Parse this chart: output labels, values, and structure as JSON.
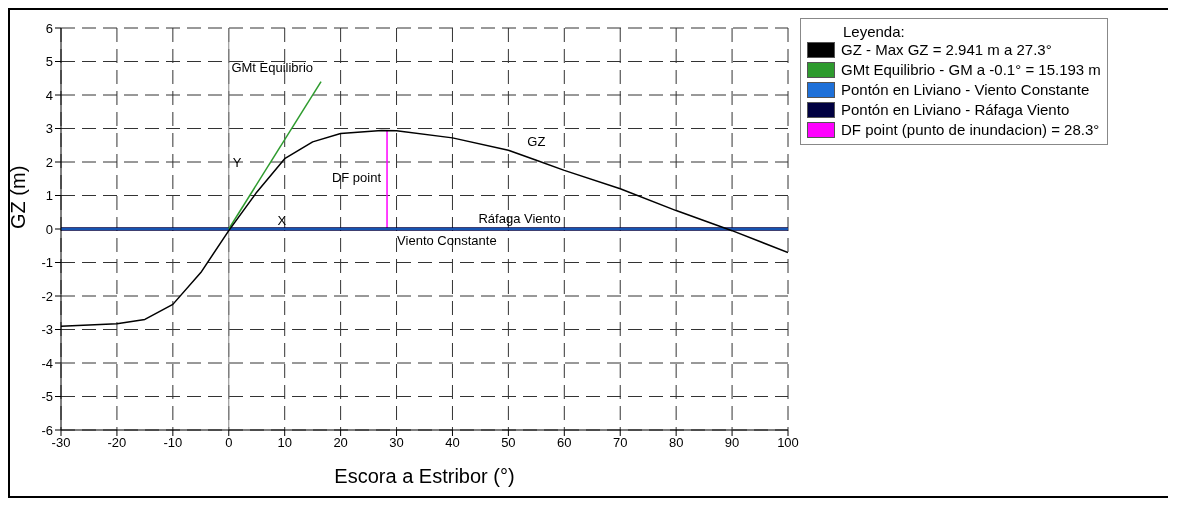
{
  "chart_data": {
    "type": "line",
    "xlabel": "Escora a Estribor (°)",
    "ylabel": "GZ (m)",
    "legend_title": "Leyenda:",
    "legend": "right",
    "grid": true,
    "line_style": "solid",
    "marker": "none",
    "xlim": [
      -30,
      100
    ],
    "xticks": [
      -30,
      -20,
      -10,
      0,
      10,
      20,
      30,
      40,
      50,
      60,
      70,
      80,
      90,
      100
    ],
    "ylim": [
      -6,
      6
    ],
    "yticks": [
      -6,
      -5,
      -4,
      -3,
      -2,
      -1,
      0,
      1,
      2,
      3,
      4,
      5,
      6
    ],
    "series": [
      {
        "name": "GZ - Max GZ = 2.941 m a 27.3°",
        "color": "#000000",
        "x": [
          -30,
          -20,
          -15,
          -10,
          -5,
          0,
          5,
          10,
          15,
          20,
          27.3,
          30,
          40,
          50,
          55,
          60,
          70,
          80,
          90,
          100
        ],
        "values": [
          -2.9,
          -2.83,
          -2.7,
          -2.25,
          -1.3,
          -0.05,
          1.1,
          2.1,
          2.6,
          2.85,
          2.94,
          2.93,
          2.72,
          2.35,
          2.05,
          1.75,
          1.2,
          0.55,
          -0.05,
          -0.7
        ]
      },
      {
        "name": "GMt Equilibrio - GM a -0.1° = 15.193 m",
        "color": "#2e9b2e",
        "x": [
          0,
          16.5
        ],
        "values": [
          0,
          4.4
        ]
      },
      {
        "name": "Pontón en Liviano - Viento Constante",
        "color": "#1e70d8",
        "x": [
          -30,
          100
        ],
        "values": [
          0,
          0
        ]
      },
      {
        "name": "Pontón en Liviano - Ráfaga Viento",
        "color": "#000040",
        "x": [
          -30,
          100
        ],
        "values": [
          0,
          0
        ]
      },
      {
        "name": "DF point (punto de inundacion) = 28.3°",
        "color": "#ff00ff",
        "x": [
          28.3,
          28.3
        ],
        "values": [
          0,
          2.93
        ]
      }
    ],
    "ref_lines": [
      {
        "axis": "x",
        "value": 0,
        "color": "#888888",
        "line_style": "solid"
      }
    ],
    "annotations": [
      {
        "text": "GMt Equilibrio",
        "x": 16.5,
        "y": 4.4
      },
      {
        "text": "GZ",
        "x": 55,
        "y": 2.05
      },
      {
        "text": "Ráfaga Viento",
        "x": 52,
        "y": 0
      },
      {
        "text": "Viento Constante",
        "x": 39,
        "y": 0
      },
      {
        "text": "DF point",
        "x": 28.3,
        "y": 1.5
      },
      {
        "text": "Y",
        "x": 0,
        "y": 1.95
      },
      {
        "text": "X",
        "x": 9.5,
        "y": 0
      }
    ]
  }
}
